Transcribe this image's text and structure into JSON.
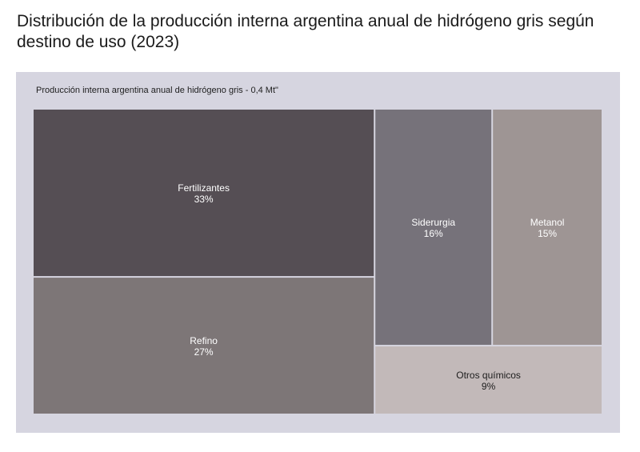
{
  "title": "Distribución de la producción interna argentina anual de hidrógeno gris según destino de uso (2023)",
  "chart_data": {
    "type": "treemap",
    "subtitle": "Producción interna argentina anual de hidrógeno gris - 0,4 Mt\"",
    "total": "0,4 Mt",
    "items": [
      {
        "name": "Fertilizantes",
        "value": 33,
        "label": "33%",
        "color": "#554e54",
        "text_color": "#ffffff"
      },
      {
        "name": "Refino",
        "value": 27,
        "label": "27%",
        "color": "#7d7677",
        "text_color": "#ffffff"
      },
      {
        "name": "Siderurgia",
        "value": 16,
        "label": "16%",
        "color": "#76727a",
        "text_color": "#ffffff"
      },
      {
        "name": "Metanol",
        "value": 15,
        "label": "15%",
        "color": "#9e9594",
        "text_color": "#ffffff"
      },
      {
        "name": "Otros químicos",
        "value": 9,
        "label": "9%",
        "color": "#c2b9b9",
        "text_color": "#1e1e1e"
      }
    ]
  }
}
